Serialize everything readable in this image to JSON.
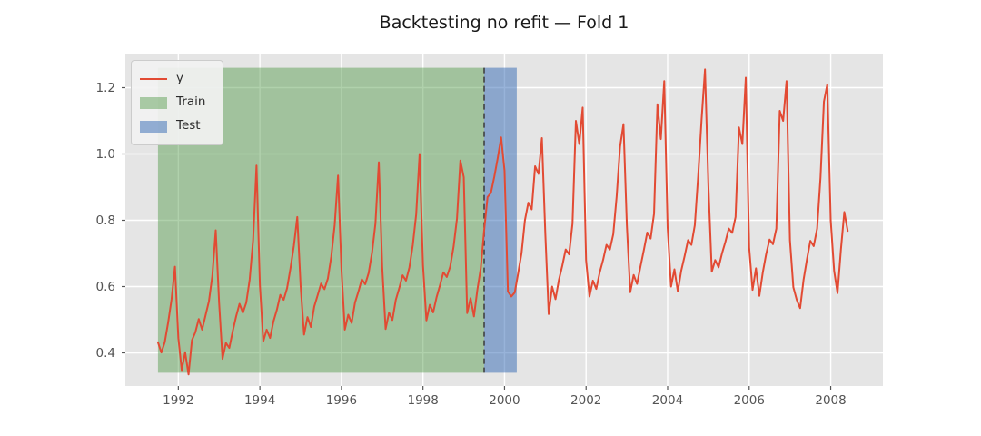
{
  "title": "Backtesting no refit — Fold 1",
  "legend": {
    "items": [
      {
        "label": "y",
        "type": "line",
        "color": "#E24A33"
      },
      {
        "label": "Train",
        "type": "patch",
        "color": "rgba(66,146,58,0.42)"
      },
      {
        "label": "Test",
        "type": "patch",
        "color": "rgba(50,104,180,0.50)"
      }
    ]
  },
  "chart_data": {
    "type": "line",
    "title": "Backtesting no refit — Fold 1",
    "xlabel": "",
    "ylabel": "",
    "grid": true,
    "legend_position": "upper left",
    "background": "#e5e5e5",
    "gridline_color": "#ffffff",
    "xlim": [
      1990.7,
      2009.28
    ],
    "ylim": [
      0.3,
      1.3
    ],
    "x_ticks": [
      1992,
      1994,
      1996,
      1998,
      2000,
      2002,
      2004,
      2006,
      2008
    ],
    "y_ticks": [
      0.4,
      0.6,
      0.8,
      1.0,
      1.2
    ],
    "x_start_decimal_year": 1991.5,
    "x_step_years": 0.0833333,
    "x_frequency": "monthly",
    "x_range_description": "Monthly observations from 1991-07 to 2008-06",
    "series": [
      {
        "name": "y",
        "color": "#E24A33",
        "line_width": 2,
        "values": [
          0.432,
          0.401,
          0.432,
          0.492,
          0.561,
          0.66,
          0.445,
          0.348,
          0.402,
          0.335,
          0.438,
          0.462,
          0.502,
          0.47,
          0.513,
          0.556,
          0.632,
          0.77,
          0.55,
          0.382,
          0.43,
          0.415,
          0.465,
          0.51,
          0.548,
          0.521,
          0.552,
          0.622,
          0.74,
          0.965,
          0.605,
          0.435,
          0.47,
          0.445,
          0.495,
          0.53,
          0.575,
          0.56,
          0.595,
          0.655,
          0.723,
          0.81,
          0.6,
          0.455,
          0.508,
          0.478,
          0.54,
          0.574,
          0.609,
          0.592,
          0.624,
          0.69,
          0.785,
          0.935,
          0.653,
          0.47,
          0.515,
          0.49,
          0.552,
          0.585,
          0.622,
          0.607,
          0.641,
          0.702,
          0.79,
          0.975,
          0.66,
          0.472,
          0.521,
          0.499,
          0.56,
          0.595,
          0.634,
          0.618,
          0.658,
          0.725,
          0.818,
          1.0,
          0.665,
          0.498,
          0.545,
          0.522,
          0.568,
          0.604,
          0.643,
          0.629,
          0.66,
          0.72,
          0.805,
          0.98,
          0.93,
          0.52,
          0.565,
          0.51,
          0.59,
          0.655,
          0.77,
          0.87,
          0.883,
          0.932,
          0.988,
          1.05,
          0.95,
          0.585,
          0.57,
          0.582,
          0.64,
          0.7,
          0.8,
          0.853,
          0.833,
          0.963,
          0.94,
          1.048,
          0.76,
          0.517,
          0.6,
          0.562,
          0.62,
          0.663,
          0.712,
          0.697,
          0.79,
          1.1,
          1.03,
          1.14,
          0.68,
          0.57,
          0.618,
          0.593,
          0.642,
          0.68,
          0.726,
          0.712,
          0.758,
          0.872,
          1.022,
          1.09,
          0.785,
          0.583,
          0.635,
          0.608,
          0.66,
          0.71,
          0.763,
          0.745,
          0.82,
          1.15,
          1.045,
          1.22,
          0.778,
          0.6,
          0.652,
          0.585,
          0.648,
          0.692,
          0.74,
          0.726,
          0.785,
          0.935,
          1.105,
          1.255,
          0.905,
          0.645,
          0.68,
          0.658,
          0.7,
          0.735,
          0.775,
          0.762,
          0.81,
          1.08,
          1.03,
          1.23,
          0.718,
          0.59,
          0.655,
          0.572,
          0.642,
          0.698,
          0.742,
          0.728,
          0.775,
          1.13,
          1.1,
          1.22,
          0.74,
          0.598,
          0.56,
          0.535,
          0.62,
          0.682,
          0.738,
          0.722,
          0.775,
          0.93,
          1.158,
          1.21,
          0.8,
          0.648,
          0.58,
          0.712,
          0.825,
          0.768
        ]
      }
    ],
    "regions": [
      {
        "label": "Train",
        "from": 1991.5,
        "to": 1999.5,
        "color": "rgba(66,146,58,0.42)"
      },
      {
        "label": "Test",
        "from": 1999.5,
        "to": 2000.3,
        "color": "rgba(50,104,180,0.50)"
      }
    ],
    "region_value_span": [
      0.34,
      1.26
    ],
    "vline": {
      "x": 1999.5,
      "color": "#404040",
      "style": "dashed"
    }
  }
}
